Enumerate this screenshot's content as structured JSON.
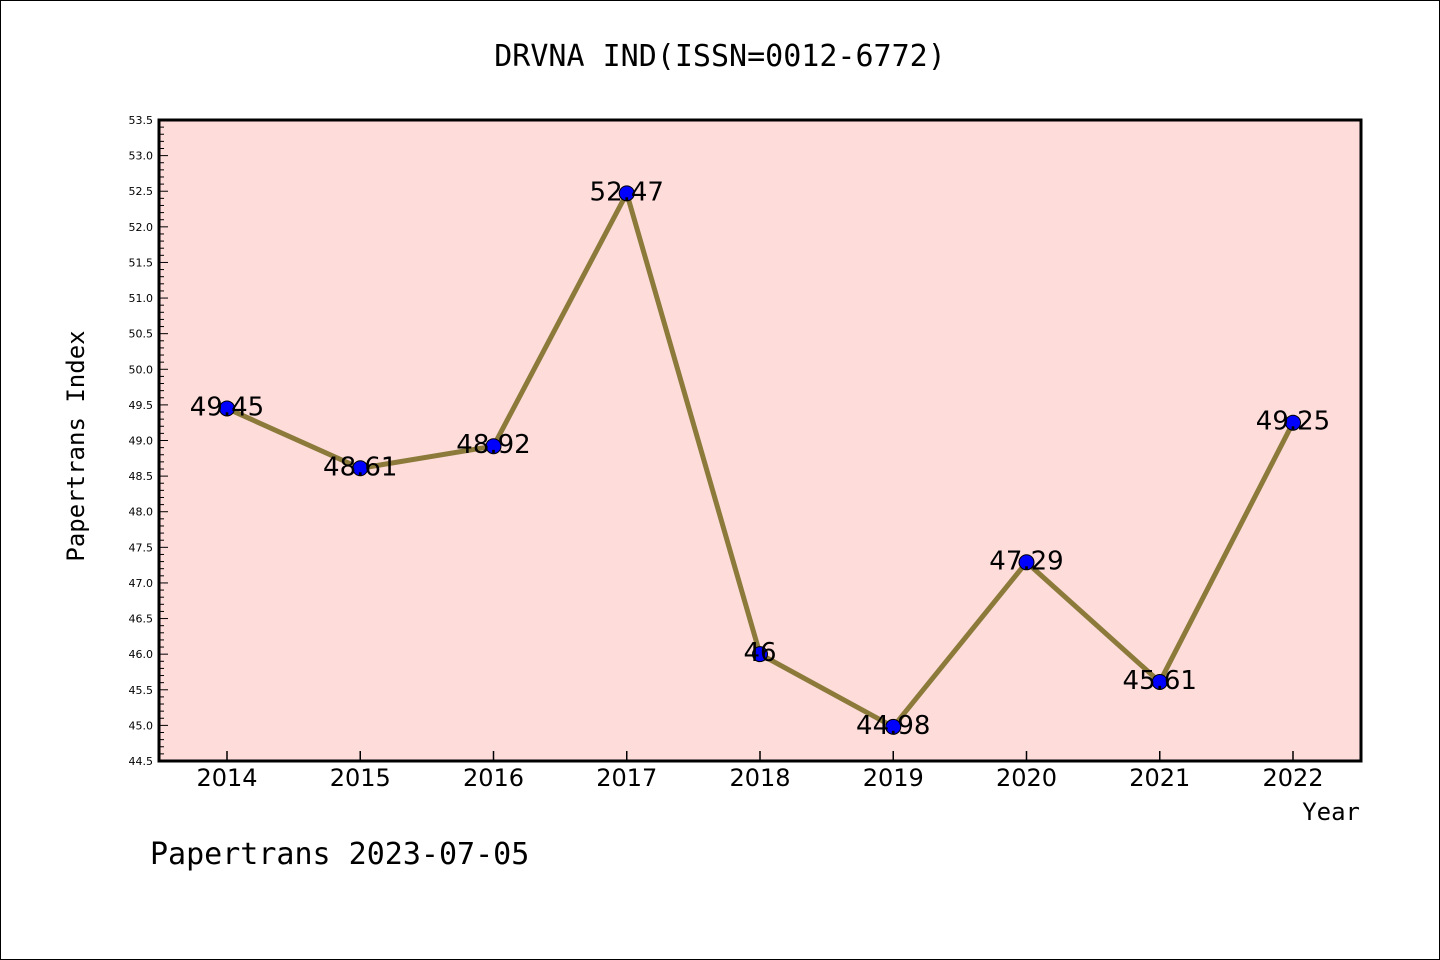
{
  "chart_data": {
    "type": "line",
    "title": "DRVNA IND(ISSN=0012-6772)",
    "xlabel": "Year",
    "ylabel": "Papertrans Index",
    "footer": "Papertrans 2023-07-05",
    "categories": [
      "2014",
      "2015",
      "2016",
      "2017",
      "2018",
      "2019",
      "2020",
      "2021",
      "2022"
    ],
    "values": [
      49.45,
      48.61,
      48.92,
      52.47,
      46,
      44.98,
      47.29,
      45.61,
      49.25
    ],
    "value_labels": [
      "49.45",
      "48.61",
      "48.92",
      "52.47",
      "46",
      "44.98",
      "47.29",
      "45.61",
      "49.25"
    ],
    "ylim": [
      44.5,
      53.5
    ],
    "ytick_step": 0.5,
    "grid": false,
    "colors": {
      "plot_background": "#fddcda",
      "line": "#8c7a3a",
      "marker": "#0000ff"
    }
  }
}
